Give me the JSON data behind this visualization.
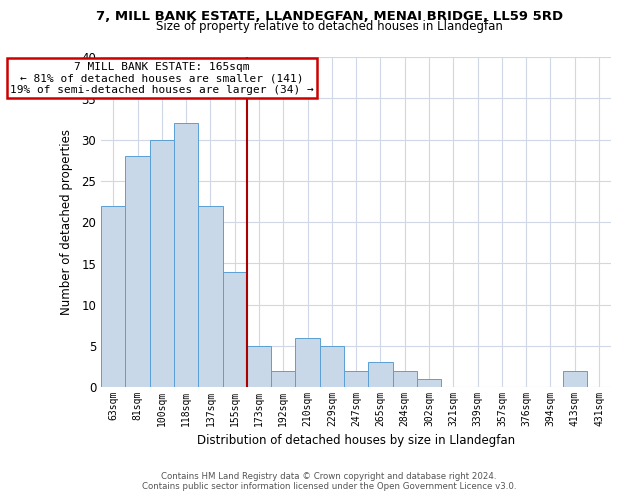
{
  "title": "7, MILL BANK ESTATE, LLANDEGFAN, MENAI BRIDGE, LL59 5RD",
  "subtitle": "Size of property relative to detached houses in Llandegfan",
  "xlabel": "Distribution of detached houses by size in Llandegfan",
  "ylabel": "Number of detached properties",
  "categories": [
    "63sqm",
    "81sqm",
    "100sqm",
    "118sqm",
    "137sqm",
    "155sqm",
    "173sqm",
    "192sqm",
    "210sqm",
    "229sqm",
    "247sqm",
    "265sqm",
    "284sqm",
    "302sqm",
    "321sqm",
    "339sqm",
    "357sqm",
    "376sqm",
    "394sqm",
    "413sqm",
    "431sqm"
  ],
  "values": [
    22,
    28,
    30,
    32,
    22,
    14,
    5,
    2,
    6,
    5,
    2,
    3,
    2,
    1,
    0,
    0,
    0,
    0,
    0,
    2,
    0
  ],
  "bar_color": "#c8d8e8",
  "bar_edge_color": "#5a9fd4",
  "highlight_index": 6,
  "highlight_line_color": "#aa0000",
  "ylim": [
    0,
    40
  ],
  "yticks": [
    0,
    5,
    10,
    15,
    20,
    25,
    30,
    35,
    40
  ],
  "annotation_title": "7 MILL BANK ESTATE: 165sqm",
  "annotation_line1": "← 81% of detached houses are smaller (141)",
  "annotation_line2": "19% of semi-detached houses are larger (34) →",
  "annotation_box_color": "#ffffff",
  "annotation_box_edge": "#cc0000",
  "footer_line1": "Contains HM Land Registry data © Crown copyright and database right 2024.",
  "footer_line2": "Contains public sector information licensed under the Open Government Licence v3.0.",
  "background_color": "#ffffff",
  "grid_color": "#d0d8e8"
}
